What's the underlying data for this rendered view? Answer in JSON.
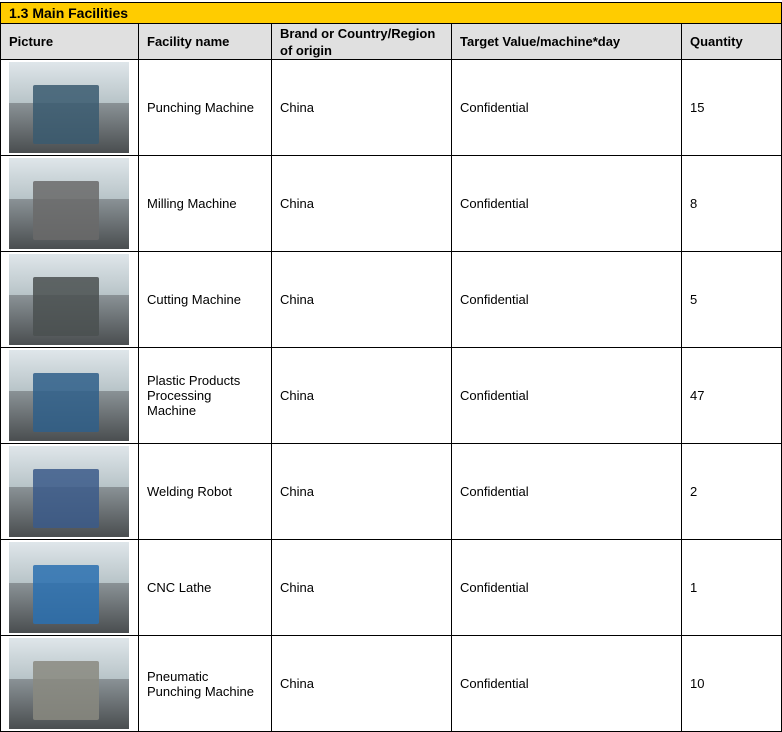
{
  "title": "1.3 Main Facilities",
  "headers": {
    "picture": "Picture",
    "name": "Facility name",
    "brand": "Brand or Country/Region of origin",
    "target": "Target Value/machine*day",
    "quantity": "Quantity"
  },
  "rows": [
    {
      "name": "Punching Machine",
      "brand": "China",
      "target": "Confidential",
      "quantity": "15",
      "image": "punching-machine-photo",
      "color": "#3a5a70"
    },
    {
      "name": "Milling Machine",
      "brand": "China",
      "target": "Confidential",
      "quantity": "8",
      "image": "milling-machine-photo",
      "color": "#6a6a6a"
    },
    {
      "name": "Cutting Machine",
      "brand": "China",
      "target": "Confidential",
      "quantity": "5",
      "image": "cutting-machine-photo",
      "color": "#4a5050"
    },
    {
      "name": "Plastic Products Processing Machine",
      "brand": "China",
      "target": "Confidential",
      "quantity": "47",
      "image": "plastic-processing-machine-photo",
      "color": "#2f5f8a"
    },
    {
      "name": "Welding Robot",
      "brand": "China",
      "target": "Confidential",
      "quantity": "2",
      "image": "welding-robot-photo",
      "color": "#3b5a8a"
    },
    {
      "name": "CNC Lathe",
      "brand": "China",
      "target": "Confidential",
      "quantity": "1",
      "image": "cnc-lathe-photo",
      "color": "#2a70b0"
    },
    {
      "name": "Pneumatic Punching Machine",
      "brand": "China",
      "target": "Confidential",
      "quantity": "10",
      "image": "pneumatic-punching-machine-photo",
      "color": "#8a8a80"
    }
  ]
}
